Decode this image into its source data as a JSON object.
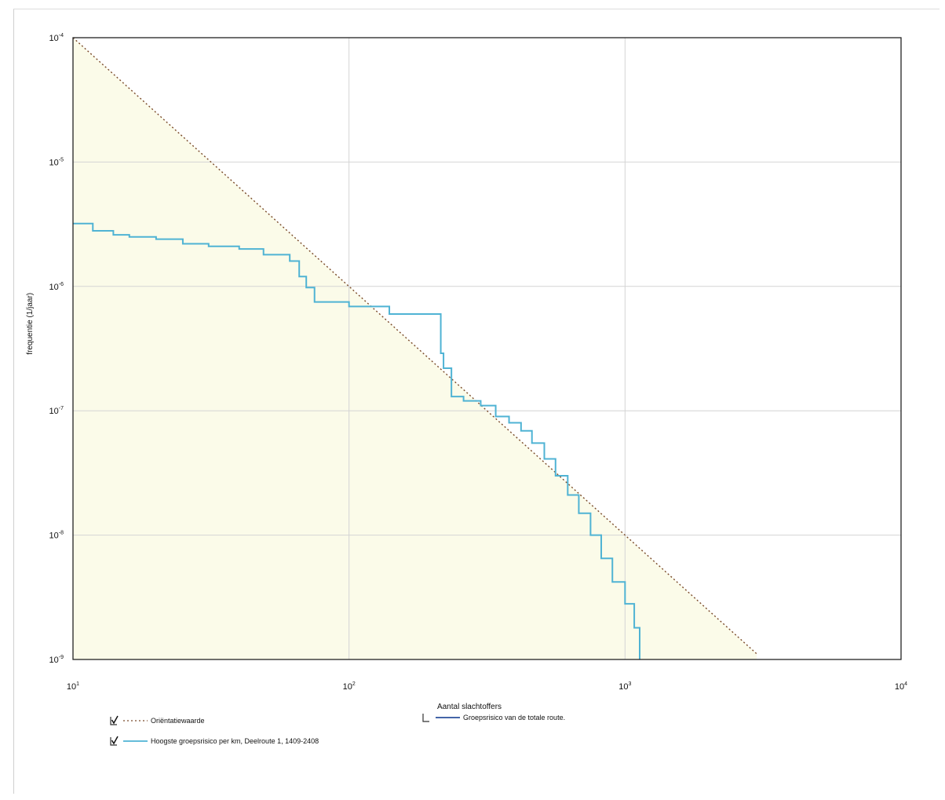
{
  "chart_data": {
    "type": "line",
    "xlabel": "Aantal slachtoffers",
    "ylabel": "frequentie (1/jaar)",
    "x_scale": "log",
    "y_scale": "log",
    "xlim": [
      10,
      10000
    ],
    "ylim": [
      1e-09,
      0.0001
    ],
    "x_ticks": [
      {
        "base": "10",
        "exp": "1"
      },
      {
        "base": "10",
        "exp": "2"
      },
      {
        "base": "10",
        "exp": "3"
      },
      {
        "base": "10",
        "exp": "4"
      }
    ],
    "y_ticks": [
      {
        "base": "10",
        "exp": "-4"
      },
      {
        "base": "10",
        "exp": "-5"
      },
      {
        "base": "10",
        "exp": "-6"
      },
      {
        "base": "10",
        "exp": "-7"
      },
      {
        "base": "10",
        "exp": "-8"
      },
      {
        "base": "10",
        "exp": "-9"
      }
    ],
    "grid": true,
    "legend_position": "bottom",
    "colors": {
      "orientation": "#7a4a2a",
      "hoogste": "#4fb3d4",
      "totaal": "#2a4f9c",
      "shade": "#fbfbe9"
    },
    "series": [
      {
        "name": "Oriëntatiewaarde",
        "style": "dotted",
        "checked": true,
        "x": [
          10,
          3000
        ],
        "y": [
          0.0001,
          1.11e-09
        ]
      },
      {
        "name": "Hoogste groepsrisico per km, Deelroute 1, 1409-2408",
        "style": "step",
        "checked": true,
        "x": [
          10,
          11.8,
          14,
          16,
          20,
          25,
          31,
          40,
          49,
          61,
          66,
          70,
          75,
          100,
          140,
          215,
          220,
          235,
          260,
          300,
          340,
          380,
          420,
          460,
          510,
          560,
          620,
          680,
          750,
          820,
          900,
          1000,
          1080,
          1130
        ],
        "y": [
          3.2e-06,
          2.8e-06,
          2.6e-06,
          2.5e-06,
          2.4e-06,
          2.2e-06,
          2.1e-06,
          2e-06,
          1.8e-06,
          1.6e-06,
          1.2e-06,
          9.8e-07,
          7.5e-07,
          6.9e-07,
          6e-07,
          2.9e-07,
          2.2e-07,
          1.3e-07,
          1.2e-07,
          1.1e-07,
          9e-08,
          8e-08,
          6.9e-08,
          5.5e-08,
          4.1e-08,
          3e-08,
          2.1e-08,
          1.5e-08,
          1e-08,
          6.5e-09,
          4.2e-09,
          2.8e-09,
          1.8e-09,
          1e-09
        ]
      },
      {
        "name": "Groepsrisico van de totale route.",
        "style": "line",
        "checked": false,
        "x": [],
        "y": []
      }
    ]
  }
}
